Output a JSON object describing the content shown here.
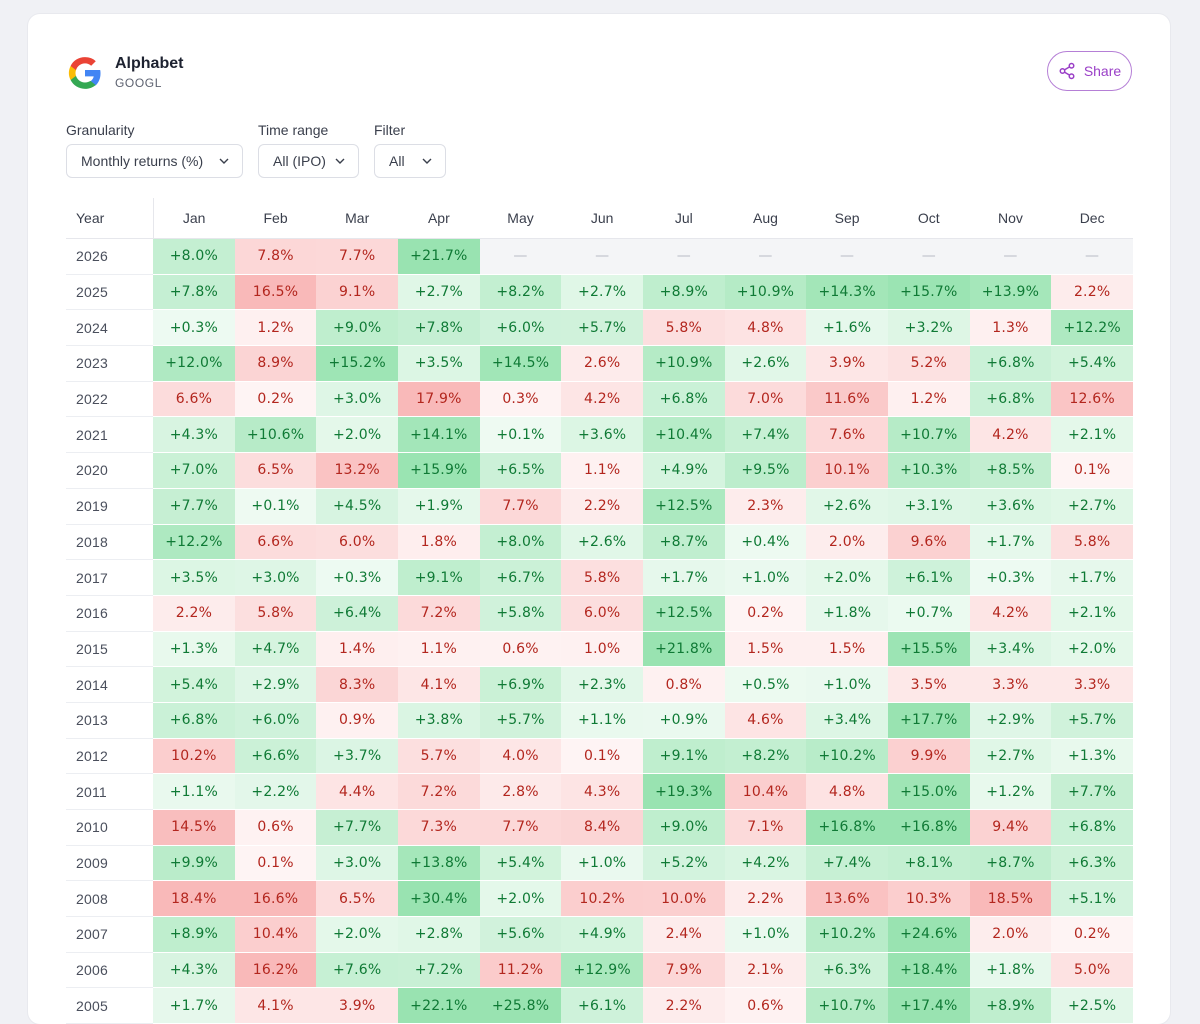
{
  "company": {
    "name": "Alphabet",
    "ticker": "GOOGL"
  },
  "share_label": "Share",
  "controls": {
    "granularity": {
      "label": "Granularity",
      "value": "Monthly returns (%)"
    },
    "time_range": {
      "label": "Time range",
      "value": "All (IPO)"
    },
    "filter": {
      "label": "Filter",
      "value": "All"
    }
  },
  "table": {
    "year_header": "Year",
    "months": [
      "Jan",
      "Feb",
      "Mar",
      "Apr",
      "May",
      "Jun",
      "Jul",
      "Aug",
      "Sep",
      "Oct",
      "Nov",
      "Dec"
    ],
    "rows": [
      {
        "year": "2026",
        "values": [
          "+8.0%",
          "7.8%",
          "7.7%",
          "+21.7%",
          "—",
          "—",
          "—",
          "—",
          "—",
          "—",
          "—",
          "—"
        ]
      },
      {
        "year": "2025",
        "values": [
          "+7.8%",
          "16.5%",
          "9.1%",
          "+2.7%",
          "+8.2%",
          "+2.7%",
          "+8.9%",
          "+10.9%",
          "+14.3%",
          "+15.7%",
          "+13.9%",
          "2.2%"
        ]
      },
      {
        "year": "2024",
        "values": [
          "+0.3%",
          "1.2%",
          "+9.0%",
          "+7.8%",
          "+6.0%",
          "+5.7%",
          "5.8%",
          "4.8%",
          "+1.6%",
          "+3.2%",
          "1.3%",
          "+12.2%"
        ]
      },
      {
        "year": "2023",
        "values": [
          "+12.0%",
          "8.9%",
          "+15.2%",
          "+3.5%",
          "+14.5%",
          "2.6%",
          "+10.9%",
          "+2.6%",
          "3.9%",
          "5.2%",
          "+6.8%",
          "+5.4%"
        ]
      },
      {
        "year": "2022",
        "values": [
          "6.6%",
          "0.2%",
          "+3.0%",
          "17.9%",
          "0.3%",
          "4.2%",
          "+6.8%",
          "7.0%",
          "11.6%",
          "1.2%",
          "+6.8%",
          "12.6%"
        ]
      },
      {
        "year": "2021",
        "values": [
          "+4.3%",
          "+10.6%",
          "+2.0%",
          "+14.1%",
          "+0.1%",
          "+3.6%",
          "+10.4%",
          "+7.4%",
          "7.6%",
          "+10.7%",
          "4.2%",
          "+2.1%"
        ]
      },
      {
        "year": "2020",
        "values": [
          "+7.0%",
          "6.5%",
          "13.2%",
          "+15.9%",
          "+6.5%",
          "1.1%",
          "+4.9%",
          "+9.5%",
          "10.1%",
          "+10.3%",
          "+8.5%",
          "0.1%"
        ]
      },
      {
        "year": "2019",
        "values": [
          "+7.7%",
          "+0.1%",
          "+4.5%",
          "+1.9%",
          "7.7%",
          "2.2%",
          "+12.5%",
          "2.3%",
          "+2.6%",
          "+3.1%",
          "+3.6%",
          "+2.7%"
        ]
      },
      {
        "year": "2018",
        "values": [
          "+12.2%",
          "6.6%",
          "6.0%",
          "1.8%",
          "+8.0%",
          "+2.6%",
          "+8.7%",
          "+0.4%",
          "2.0%",
          "9.6%",
          "+1.7%",
          "5.8%"
        ]
      },
      {
        "year": "2017",
        "values": [
          "+3.5%",
          "+3.0%",
          "+0.3%",
          "+9.1%",
          "+6.7%",
          "5.8%",
          "+1.7%",
          "+1.0%",
          "+2.0%",
          "+6.1%",
          "+0.3%",
          "+1.7%"
        ]
      },
      {
        "year": "2016",
        "values": [
          "2.2%",
          "5.8%",
          "+6.4%",
          "7.2%",
          "+5.8%",
          "6.0%",
          "+12.5%",
          "0.2%",
          "+1.8%",
          "+0.7%",
          "4.2%",
          "+2.1%"
        ]
      },
      {
        "year": "2015",
        "values": [
          "+1.3%",
          "+4.7%",
          "1.4%",
          "1.1%",
          "0.6%",
          "1.0%",
          "+21.8%",
          "1.5%",
          "1.5%",
          "+15.5%",
          "+3.4%",
          "+2.0%"
        ]
      },
      {
        "year": "2014",
        "values": [
          "+5.4%",
          "+2.9%",
          "8.3%",
          "4.1%",
          "+6.9%",
          "+2.3%",
          "0.8%",
          "+0.5%",
          "+1.0%",
          "3.5%",
          "3.3%",
          "3.3%"
        ]
      },
      {
        "year": "2013",
        "values": [
          "+6.8%",
          "+6.0%",
          "0.9%",
          "+3.8%",
          "+5.7%",
          "+1.1%",
          "+0.9%",
          "4.6%",
          "+3.4%",
          "+17.7%",
          "+2.9%",
          "+5.7%"
        ]
      },
      {
        "year": "2012",
        "values": [
          "10.2%",
          "+6.6%",
          "+3.7%",
          "5.7%",
          "4.0%",
          "0.1%",
          "+9.1%",
          "+8.2%",
          "+10.2%",
          "9.9%",
          "+2.7%",
          "+1.3%"
        ]
      },
      {
        "year": "2011",
        "values": [
          "+1.1%",
          "+2.2%",
          "4.4%",
          "7.2%",
          "2.8%",
          "4.3%",
          "+19.3%",
          "10.4%",
          "4.8%",
          "+15.0%",
          "+1.2%",
          "+7.7%"
        ]
      },
      {
        "year": "2010",
        "values": [
          "14.5%",
          "0.6%",
          "+7.7%",
          "7.3%",
          "7.7%",
          "8.4%",
          "+9.0%",
          "7.1%",
          "+16.8%",
          "+16.8%",
          "9.4%",
          "+6.8%"
        ]
      },
      {
        "year": "2009",
        "values": [
          "+9.9%",
          "0.1%",
          "+3.0%",
          "+13.8%",
          "+5.4%",
          "+1.0%",
          "+5.2%",
          "+4.2%",
          "+7.4%",
          "+8.1%",
          "+8.7%",
          "+6.3%"
        ]
      },
      {
        "year": "2008",
        "values": [
          "18.4%",
          "16.6%",
          "6.5%",
          "+30.4%",
          "+2.0%",
          "10.2%",
          "10.0%",
          "2.2%",
          "13.6%",
          "10.3%",
          "18.5%",
          "+5.1%"
        ]
      },
      {
        "year": "2007",
        "values": [
          "+8.9%",
          "10.4%",
          "+2.0%",
          "+2.8%",
          "+5.6%",
          "+4.9%",
          "2.4%",
          "+1.0%",
          "+10.2%",
          "+24.6%",
          "2.0%",
          "0.2%"
        ]
      },
      {
        "year": "2006",
        "values": [
          "+4.3%",
          "16.2%",
          "+7.6%",
          "+7.2%",
          "11.2%",
          "+12.9%",
          "7.9%",
          "2.1%",
          "+6.3%",
          "+18.4%",
          "+1.8%",
          "5.0%"
        ]
      },
      {
        "year": "2005",
        "values": [
          "+1.7%",
          "4.1%",
          "3.9%",
          "+22.1%",
          "+25.8%",
          "+6.1%",
          "2.2%",
          "0.6%",
          "+10.7%",
          "+17.4%",
          "+8.9%",
          "+2.5%"
        ]
      }
    ]
  }
}
